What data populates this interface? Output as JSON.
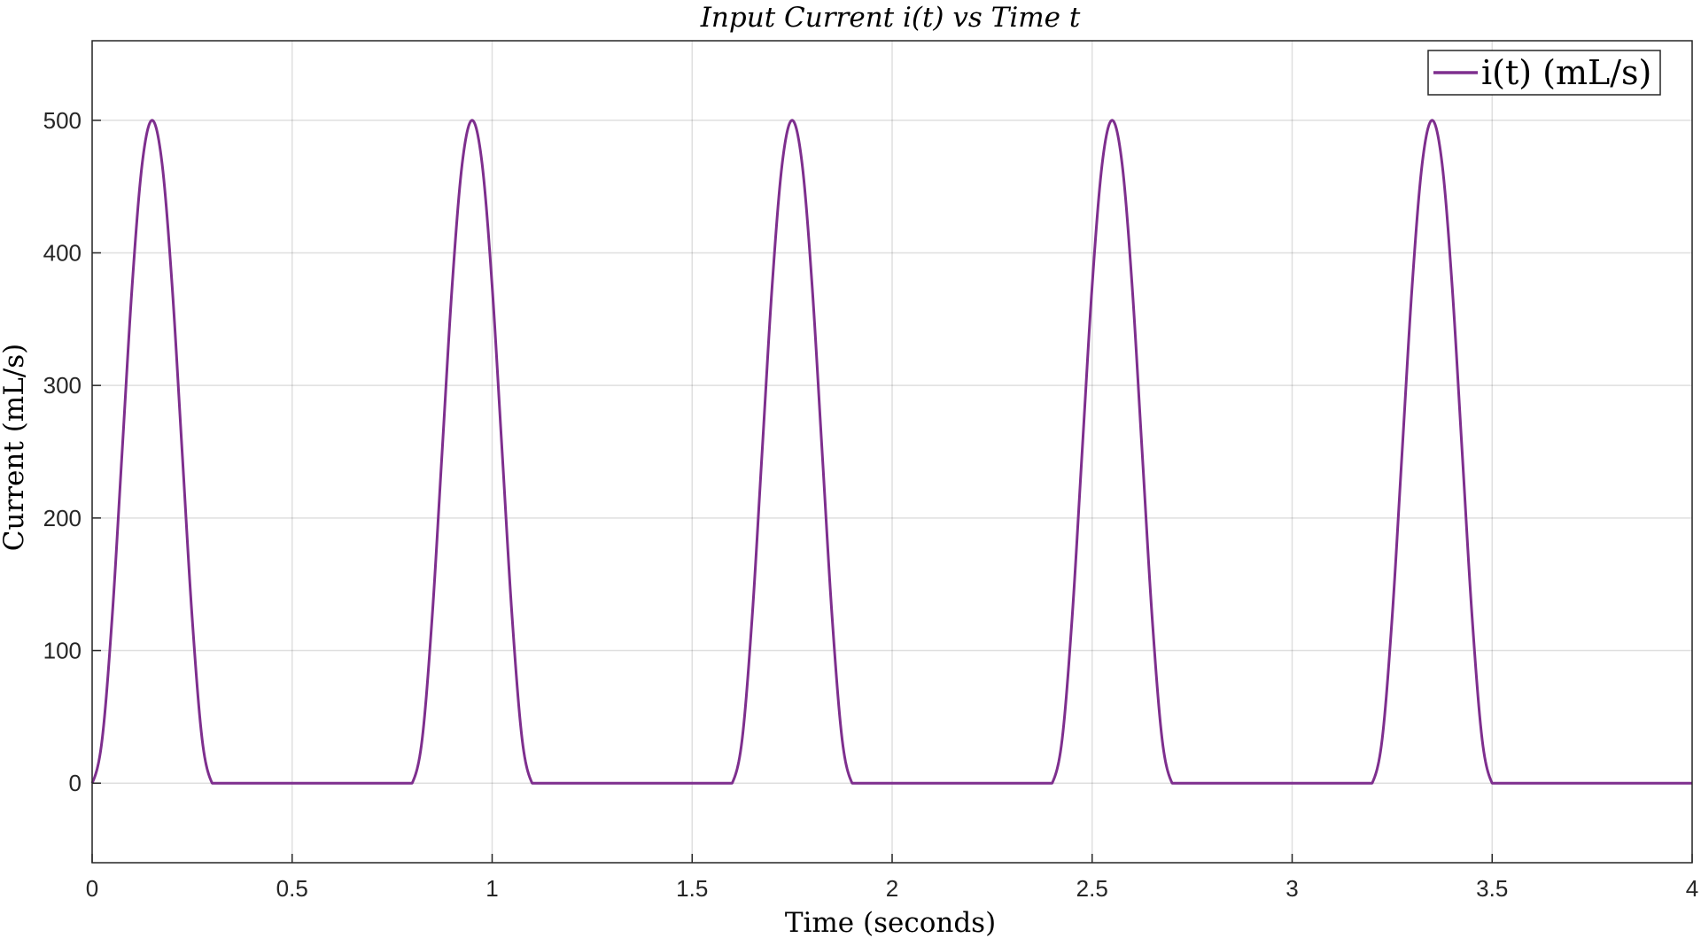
{
  "chart_data": {
    "type": "line",
    "title": "Input Current i(t) vs Time t",
    "xlabel": "Time (seconds)",
    "ylabel": "Current (mL/s)",
    "xlim": [
      0,
      4
    ],
    "ylim": [
      -60,
      560
    ],
    "xticks": [
      0,
      0.5,
      1,
      1.5,
      2,
      2.5,
      3,
      3.5,
      4
    ],
    "xtick_labels": [
      "0",
      "0.5",
      "1",
      "1.5",
      "2",
      "2.5",
      "3",
      "3.5",
      "4"
    ],
    "yticks": [
      0,
      100,
      200,
      300,
      400,
      500
    ],
    "ytick_labels": [
      "0",
      "100",
      "200",
      "300",
      "400",
      "500"
    ],
    "grid": true,
    "legend_position": "top-right",
    "series": [
      {
        "name": "i(t) (mL/s)",
        "color": "#7E2F8E",
        "x": [
          0,
          0.025,
          0.05,
          0.075,
          0.1,
          0.125,
          0.15,
          0.175,
          0.2,
          0.225,
          0.25,
          0.275,
          0.3,
          0.8,
          0.825,
          0.85,
          0.875,
          0.9,
          0.925,
          0.95,
          0.975,
          1.0,
          1.025,
          1.05,
          1.075,
          1.1,
          1.6,
          1.625,
          1.65,
          1.675,
          1.7,
          1.725,
          1.75,
          1.775,
          1.8,
          1.825,
          1.85,
          1.875,
          1.9,
          2.4,
          2.425,
          2.45,
          2.475,
          2.5,
          2.525,
          2.55,
          2.575,
          2.6,
          2.625,
          2.65,
          2.675,
          2.7,
          3.2,
          3.225,
          3.25,
          3.275,
          3.3,
          3.325,
          3.35,
          3.375,
          3.4,
          3.425,
          3.45,
          3.475,
          3.5,
          4.0
        ],
        "y": [
          0,
          33,
          125,
          250,
          375,
          467,
          500,
          467,
          375,
          250,
          125,
          33,
          0,
          0,
          33,
          125,
          250,
          375,
          467,
          500,
          467,
          375,
          250,
          125,
          33,
          0,
          0,
          33,
          125,
          250,
          375,
          467,
          500,
          467,
          375,
          250,
          125,
          33,
          0,
          0,
          33,
          125,
          250,
          375,
          467,
          500,
          467,
          375,
          250,
          125,
          33,
          0,
          0,
          33,
          125,
          250,
          375,
          467,
          500,
          467,
          375,
          250,
          125,
          33,
          0,
          0
        ]
      }
    ]
  }
}
